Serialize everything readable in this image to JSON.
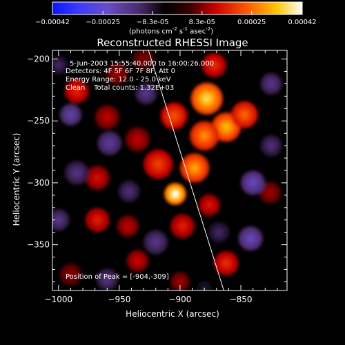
{
  "colorbar": {
    "ticks": [
      "-0.00042",
      "-0.00025",
      "-8.3e-05",
      "8.3e-05",
      "0.00025",
      "0.00042"
    ],
    "units_text": "(photons cm",
    "units_exp1": "-2",
    "units_mid1": " s",
    "units_exp2": "-1",
    "units_mid2": " asec",
    "units_exp3": "-2",
    "units_end": ")",
    "range": [
      -0.00042,
      0.00042
    ]
  },
  "chart_data": {
    "type": "heatmap",
    "title": "Reconstructed RHESSI Image",
    "xlabel": "Heliocentric X (arcsec)",
    "ylabel": "Heliocentric Y (arcsec)",
    "xlim": [
      -1005,
      -812
    ],
    "ylim": [
      -387,
      -193
    ],
    "x_ticks": [
      -1000,
      -950,
      -900,
      -850
    ],
    "y_ticks": [
      -200,
      -250,
      -300,
      -350
    ],
    "x_tick_labels": [
      "−1000",
      "−950",
      "−900",
      "−850"
    ],
    "y_tick_labels": [
      "−200",
      "−250",
      "−300",
      "−350"
    ],
    "colormap": "black-purple-red-orange-yellow-white",
    "peak": [
      -904,
      -309
    ],
    "limb_line": [
      [
        -926,
        -193
      ],
      [
        -864,
        -387
      ]
    ],
    "annotations": {
      "time": "5-Jun-2003 15:55:40.000 to 16:00:26.000",
      "detectors": "Detectors: 4F 5F 6F 7F 8F, Att 0",
      "energy": "Energy Range: 12.0 - 25.0 keV",
      "clean": "Clean    Total counts: 1.32E+03",
      "peak_text": "Position of Peak = [-904,-309]"
    },
    "blobs": [
      {
        "x": -904,
        "y": -309,
        "v": 0.00042,
        "r": 9
      },
      {
        "x": -888,
        "y": -288,
        "v": 0.0003,
        "r": 12
      },
      {
        "x": -878,
        "y": -232,
        "v": 0.00036,
        "r": 13
      },
      {
        "x": -862,
        "y": -255,
        "v": 0.00032,
        "r": 12
      },
      {
        "x": -880,
        "y": -262,
        "v": 0.00028,
        "r": 12
      },
      {
        "x": -905,
        "y": -246,
        "v": 0.00022,
        "r": 11
      },
      {
        "x": -847,
        "y": -245,
        "v": 0.00024,
        "r": 11
      },
      {
        "x": -872,
        "y": -205,
        "v": 0.00018,
        "r": 10
      },
      {
        "x": -918,
        "y": -285,
        "v": 0.0002,
        "r": 12
      },
      {
        "x": -935,
        "y": -265,
        "v": 0.00012,
        "r": 10
      },
      {
        "x": -985,
        "y": -226,
        "v": 0.00017,
        "r": 10
      },
      {
        "x": -960,
        "y": -247,
        "v": 0.00012,
        "r": 10
      },
      {
        "x": -952,
        "y": -212,
        "v": 0.0001,
        "r": 9
      },
      {
        "x": -968,
        "y": -296,
        "v": 0.00014,
        "r": 10
      },
      {
        "x": -968,
        "y": -330,
        "v": 0.00016,
        "r": 10
      },
      {
        "x": -943,
        "y": -335,
        "v": 0.00012,
        "r": 9
      },
      {
        "x": -898,
        "y": -335,
        "v": 0.00016,
        "r": 10
      },
      {
        "x": -935,
        "y": -363,
        "v": 0.00013,
        "r": 9
      },
      {
        "x": -862,
        "y": -365,
        "v": 0.00018,
        "r": 10
      },
      {
        "x": -876,
        "y": -318,
        "v": 0.00015,
        "r": 9
      },
      {
        "x": -826,
        "y": -308,
        "v": 0.0001,
        "r": 9
      },
      {
        "x": -990,
        "y": -374,
        "v": 9e-05,
        "r": 9
      },
      {
        "x": -900,
        "y": -380,
        "v": 0.0001,
        "r": 8
      },
      {
        "x": -930,
        "y": -200,
        "v": 8e-05,
        "r": 9
      },
      {
        "x": -990,
        "y": -245,
        "v": -0.0002,
        "r": 9
      },
      {
        "x": -958,
        "y": -268,
        "v": -0.00018,
        "r": 10
      },
      {
        "x": -985,
        "y": -292,
        "v": -0.00015,
        "r": 10
      },
      {
        "x": -928,
        "y": -228,
        "v": -0.00016,
        "r": 9
      },
      {
        "x": -942,
        "y": -307,
        "v": -0.00014,
        "r": 9
      },
      {
        "x": -920,
        "y": -348,
        "v": -0.00016,
        "r": 10
      },
      {
        "x": -960,
        "y": -378,
        "v": -0.00015,
        "r": 9
      },
      {
        "x": -868,
        "y": -340,
        "v": -0.00012,
        "r": 9
      },
      {
        "x": -840,
        "y": -300,
        "v": -0.00022,
        "r": 10
      },
      {
        "x": -842,
        "y": -345,
        "v": -0.00022,
        "r": 10
      },
      {
        "x": -825,
        "y": -220,
        "v": -0.00016,
        "r": 9
      },
      {
        "x": -825,
        "y": -270,
        "v": -0.00014,
        "r": 9
      },
      {
        "x": -1000,
        "y": -330,
        "v": -0.00016,
        "r": 9
      },
      {
        "x": -1000,
        "y": -205,
        "v": -0.00012,
        "r": 8
      },
      {
        "x": -880,
        "y": -385,
        "v": -8e-05,
        "r": 8
      }
    ]
  }
}
